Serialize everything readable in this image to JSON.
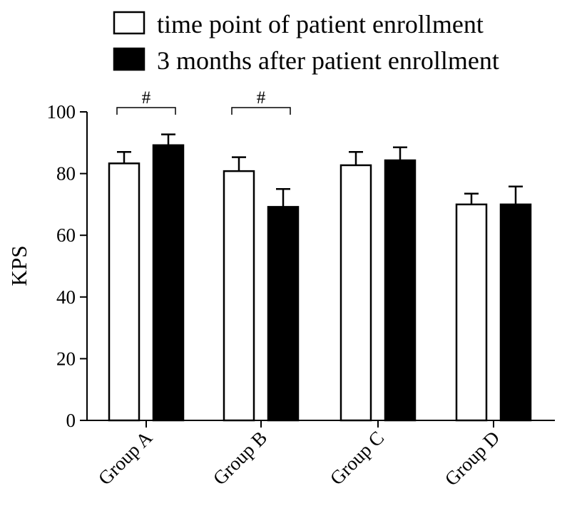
{
  "chart_data": {
    "type": "bar",
    "title": "",
    "xlabel": "",
    "ylabel": "KPS",
    "ylim": [
      0,
      100
    ],
    "yticks": [
      0,
      20,
      40,
      60,
      80,
      100
    ],
    "grid": false,
    "legend_placement": "top",
    "categories": [
      "Group A",
      "Group B",
      "Group C",
      "Group D"
    ],
    "series": [
      {
        "name": "time point of patient enrollment",
        "color": "#ffffff",
        "values": [
          83.3,
          80.8,
          82.7,
          70.0
        ],
        "errors": [
          3.7,
          4.5,
          4.3,
          3.5
        ]
      },
      {
        "name": "3 months after patient enrollment",
        "color": "#000000",
        "values": [
          89.2,
          69.2,
          84.3,
          70.0
        ],
        "errors": [
          3.5,
          5.8,
          4.2,
          5.8
        ]
      }
    ],
    "annotations": [
      {
        "category": "Group A",
        "text": "#"
      },
      {
        "category": "Group B",
        "text": "#"
      }
    ]
  }
}
